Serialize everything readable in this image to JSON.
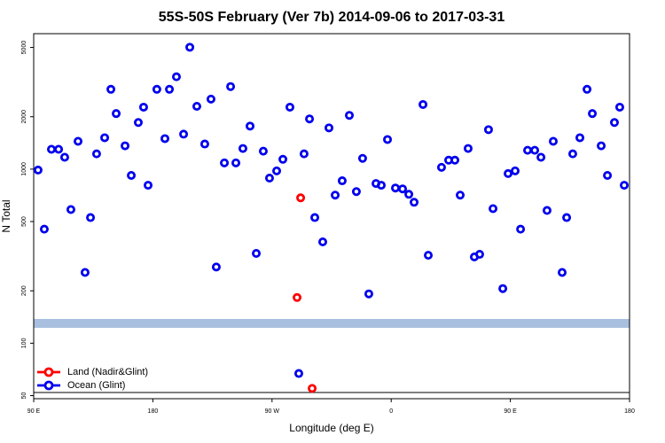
{
  "chart_data": {
    "type": "scatter",
    "title": "55S-50S February (Ver 7b)   2014-09-06 to 2017-03-31",
    "x_label": "Longitude (deg E)",
    "y_label": "N Total",
    "xlim": [
      90,
      540
    ],
    "xticks": [
      {
        "value": 90,
        "label": "90 E"
      },
      {
        "value": 180,
        "label": "180"
      },
      {
        "value": 270,
        "label": "90 W"
      },
      {
        "value": 360,
        "label": "0"
      },
      {
        "value": 450,
        "label": "90 E"
      },
      {
        "value": 540,
        "label": "180"
      }
    ],
    "ylim": [
      48,
      6000
    ],
    "log_y": true,
    "yticks": [
      50,
      100,
      200,
      500,
      1000,
      2000,
      5000
    ],
    "legend": "bottomleft",
    "series": [
      {
        "name": "Land (Nadir&Glint)",
        "color": "#ff0000",
        "x": [
          291.6,
          288.9,
          300.3
        ],
        "values": [
          684,
          183,
          55
        ]
      },
      {
        "name": "Ocean (Glint)",
        "color": "#0000ee",
        "x": [
          93.3,
          98,
          103.4,
          108.8,
          113.4,
          118.1,
          123.5,
          128.8,
          132.9,
          137.5,
          143.6,
          148.3,
          152.3,
          159,
          163.7,
          169,
          173,
          176.4,
          183,
          189.1,
          192.5,
          197.8,
          203.2,
          207.9,
          213.2,
          219.2,
          223.9,
          227.9,
          234,
          238.7,
          242.7,
          248,
          253.4,
          258.1,
          263.4,
          268.1,
          273.5,
          278.2,
          283.5,
          290.2,
          294.2,
          298.3,
          302.3,
          308.3,
          313,
          317.7,
          323,
          328.4,
          333.7,
          338.4,
          343.1,
          348.5,
          352.5,
          357.2,
          363.2,
          368.6,
          373.3,
          377.3,
          384,
          388,
          398,
          403.4,
          408.1,
          412.1,
          418.1,
          422.8,
          426.8,
          433.5,
          436.9,
          444.3,
          448.3,
          453.6,
          457.7,
          463,
          468.4,
          473.1,
          477.7,
          482.4,
          489.1,
          492.5,
          497.1,
          502.5,
          507.9,
          511.9,
          518.6,
          523.3,
          528.6,
          532.6,
          536
        ],
        "values": [
          988,
          452,
          1300,
          1300,
          1170,
          586,
          1445,
          255,
          527,
          1224,
          1515,
          2874,
          2086,
          1361,
          920,
          1853,
          2270,
          808,
          2874,
          1497,
          2874,
          3393,
          1588,
          5013,
          2295,
          1394,
          2525,
          274,
          1086,
          2981,
          1086,
          1314,
          1767,
          328,
          1268,
          888,
          977,
          1139,
          2270,
          67,
          1224,
          1943,
          527,
          382,
          1726,
          709,
          857,
          2036,
          743,
          1153,
          192,
          827,
          808,
          1480,
          779,
          770,
          717,
          645,
          2351,
          320,
          1024,
          1126,
          1126,
          709,
          1314,
          313,
          324,
          1686,
          593,
          206,
          943,
          977,
          452,
          1283,
          1283,
          1170,
          579,
          1445,
          255,
          527,
          1224,
          1515,
          2874,
          2086,
          1361,
          920,
          1853,
          2270,
          808
        ]
      }
    ]
  }
}
